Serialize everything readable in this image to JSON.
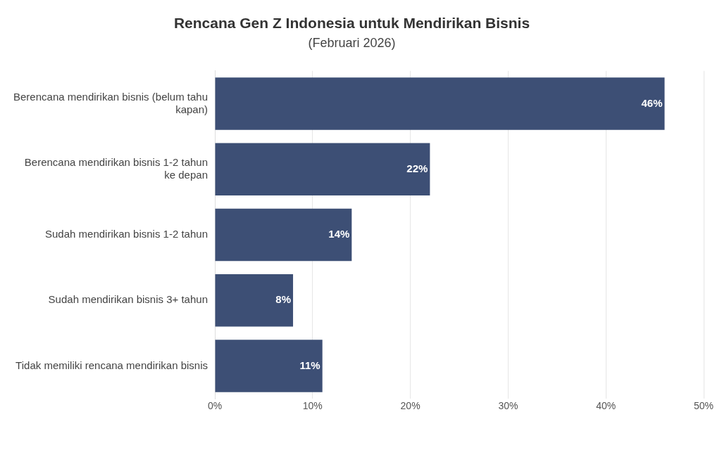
{
  "chart_data": {
    "type": "bar",
    "orientation": "horizontal",
    "title": "Rencana Gen Z Indonesia untuk Mendirikan Bisnis",
    "subtitle": "(Februari 2026)",
    "categories": [
      "Berencana mendirikan bisnis (belum tahu kapan)",
      "Berencana mendirikan bisnis 1-2 tahun ke depan",
      "Sudah mendirikan bisnis 1-2 tahun",
      "Sudah mendirikan bisnis 3+ tahun",
      "Tidak memiliki rencana mendirikan bisnis"
    ],
    "values": [
      46,
      22,
      14,
      8,
      11
    ],
    "value_labels": [
      "46%",
      "22%",
      "14%",
      "8%",
      "11%"
    ],
    "color": "#3d4f75",
    "xlim": [
      0,
      50
    ],
    "xticks": [
      {
        "value": 0,
        "label": "0%"
      },
      {
        "value": 10,
        "label": "10%"
      },
      {
        "value": 20,
        "label": "20%"
      },
      {
        "value": 30,
        "label": "30%"
      },
      {
        "value": 40,
        "label": "40%"
      },
      {
        "value": 50,
        "label": "50%"
      }
    ],
    "grid": "x",
    "legend": false
  }
}
